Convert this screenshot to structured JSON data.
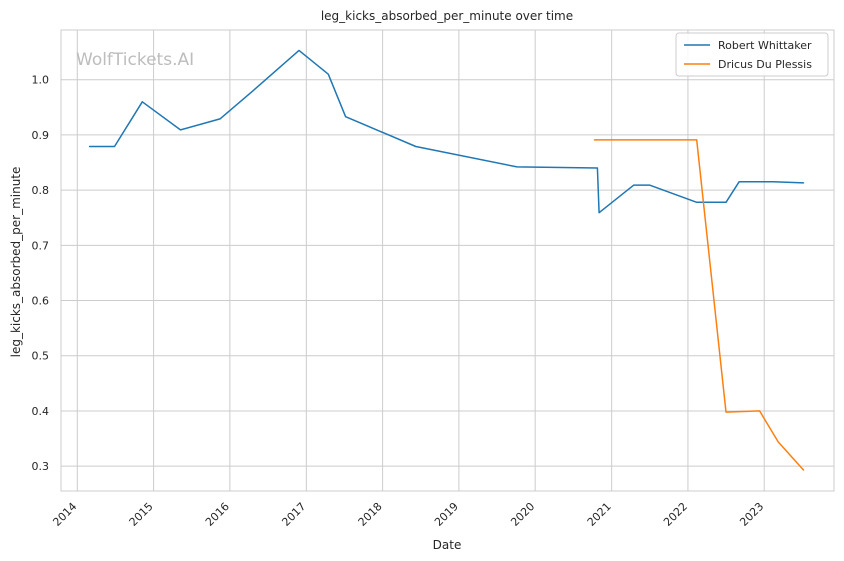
{
  "chart_data": {
    "type": "line",
    "title": "leg_kicks_absorbed_per_minute over time",
    "xlabel": "Date",
    "ylabel": "leg_kicks_absorbed_per_minute",
    "watermark": "WolfTickets.AI",
    "xlim": [
      "2013-10-15",
      "2023-12-01"
    ],
    "ylim": [
      0.255,
      1.09
    ],
    "x_ticks": [
      "2014",
      "2015",
      "2016",
      "2017",
      "2018",
      "2019",
      "2020",
      "2021",
      "2022",
      "2023"
    ],
    "y_ticks": [
      "0.3",
      "0.4",
      "0.5",
      "0.6",
      "0.7",
      "0.8",
      "0.9",
      "1.0"
    ],
    "grid": true,
    "legend_position": "top-right",
    "series": [
      {
        "name": "Robert Whittaker",
        "color": "#1f77b4",
        "x": [
          "2014-03-01",
          "2014-06-28",
          "2014-11-08",
          "2015-05-10",
          "2015-11-15",
          "2016-04-15",
          "2016-11-27",
          "2017-04-16",
          "2017-07-08",
          "2018-06-09",
          "2019-10-06",
          "2020-10-25",
          "2020-11-02",
          "2021-04-17",
          "2021-07-01",
          "2022-02-12",
          "2022-07-02",
          "2022-09-03",
          "2023-02-12",
          "2023-07-08"
        ],
        "y": [
          0.879,
          0.879,
          0.96,
          0.909,
          0.929,
          0.978,
          1.053,
          1.01,
          0.933,
          0.879,
          0.842,
          0.84,
          0.759,
          0.809,
          0.809,
          0.778,
          0.778,
          0.815,
          0.815,
          0.813
        ]
      },
      {
        "name": "Dricus Du Plessis",
        "color": "#ff7f0e",
        "x": [
          "2020-10-11",
          "2022-02-12",
          "2022-07-02",
          "2022-12-10",
          "2023-03-09",
          "2023-07-08"
        ],
        "y": [
          0.891,
          0.891,
          0.398,
          0.4,
          0.344,
          0.293
        ]
      }
    ]
  }
}
